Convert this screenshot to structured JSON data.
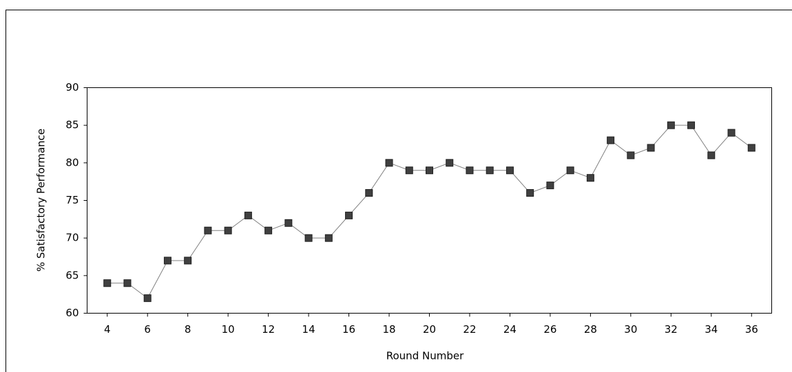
{
  "chart_data": {
    "type": "line",
    "x_label": "Round Number",
    "y_label": "% Satisfactory Performance",
    "x": [
      4,
      5,
      6,
      7,
      8,
      9,
      10,
      11,
      12,
      13,
      14,
      15,
      16,
      17,
      18,
      19,
      20,
      21,
      22,
      23,
      24,
      25,
      26,
      27,
      28,
      29,
      30,
      31,
      32,
      33,
      34,
      35,
      36
    ],
    "series": [
      {
        "color": "#404040",
        "values": [
          64,
          64,
          62,
          67,
          67,
          71,
          71,
          73,
          71,
          72,
          70,
          70,
          73,
          76,
          80,
          79,
          79,
          80,
          79,
          79,
          79,
          76,
          77,
          79,
          78,
          83,
          81,
          82,
          85,
          85,
          81,
          84,
          82
        ]
      }
    ],
    "xlim": [
      3,
      37
    ],
    "xticks": [
      4,
      6,
      8,
      10,
      12,
      14,
      16,
      18,
      20,
      22,
      24,
      26,
      28,
      30,
      32,
      34,
      36
    ],
    "ylim": [
      60,
      90
    ],
    "yticks": [
      60,
      65,
      70,
      75,
      80,
      85,
      90
    ],
    "grid": false
  }
}
